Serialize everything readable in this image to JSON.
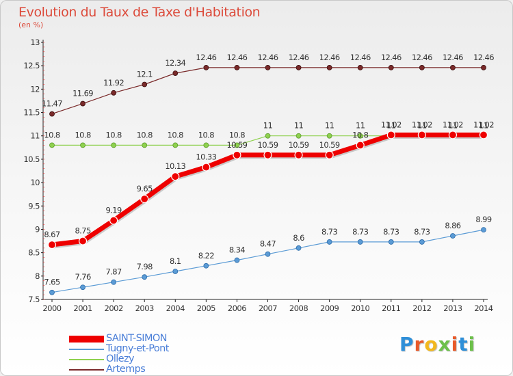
{
  "chart_data": {
    "type": "line",
    "title": "Evolution du Taux de Taxe d'Habitation",
    "ylabel": "(en %)",
    "xlabel": "",
    "x": [
      "2000",
      "2001",
      "2002",
      "2003",
      "2004",
      "2005",
      "2006",
      "2007",
      "2008",
      "2009",
      "2010",
      "2011",
      "2012",
      "2013",
      "2014"
    ],
    "ylim": [
      7.5,
      13
    ],
    "yticks": [
      "7.5",
      "8",
      "8.5",
      "9",
      "9.5",
      "10",
      "10.5",
      "11",
      "11.5",
      "12",
      "12.5",
      "13"
    ],
    "grid": false,
    "legend_position": "bottom-left",
    "series": [
      {
        "name": "SAINT-SIMON",
        "color": "#ee0000",
        "values": [
          8.67,
          8.75,
          9.19,
          9.65,
          10.13,
          10.33,
          10.59,
          10.59,
          10.59,
          10.59,
          10.8,
          11.02,
          11.02,
          11.02,
          11.02
        ],
        "labels": [
          "8.67",
          "8.75",
          "9.19",
          "9.65",
          "10.13",
          "10.33",
          "10.59",
          "10.59",
          "10.59",
          "10.59",
          "10.8",
          "11.02",
          "11.02",
          "11.02",
          "11.02"
        ]
      },
      {
        "name": "Tugny-et-Pont",
        "color": "#5b9bd5",
        "values": [
          7.65,
          7.76,
          7.87,
          7.98,
          8.1,
          8.22,
          8.34,
          8.47,
          8.6,
          8.73,
          8.73,
          8.73,
          8.73,
          8.86,
          8.99
        ],
        "labels": [
          "7.65",
          "7.76",
          "7.87",
          "7.98",
          "8.1",
          "8.22",
          "8.34",
          "8.47",
          "8.6",
          "8.73",
          "8.73",
          "8.73",
          "8.73",
          "8.86",
          "8.99"
        ]
      },
      {
        "name": "Ollezy",
        "color": "#8fd14f",
        "values": [
          10.8,
          10.8,
          10.8,
          10.8,
          10.8,
          10.8,
          10.8,
          11,
          11,
          11,
          11,
          11,
          11,
          11,
          11
        ],
        "labels": [
          "10.8",
          "10.8",
          "10.8",
          "10.8",
          "10.8",
          "10.8",
          "10.8",
          "11",
          "11",
          "11",
          "11",
          "11",
          "11",
          "11",
          "11"
        ]
      },
      {
        "name": "Artemps",
        "color": "#7a2a2a",
        "values": [
          11.47,
          11.69,
          11.92,
          12.1,
          12.34,
          12.46,
          12.46,
          12.46,
          12.46,
          12.46,
          12.46,
          12.46,
          12.46,
          12.46,
          12.46
        ],
        "labels": [
          "11.47",
          "11.69",
          "11.92",
          "12.1",
          "12.34",
          "12.46",
          "12.46",
          "12.46",
          "12.46",
          "12.46",
          "12.46",
          "12.46",
          "12.46",
          "12.46",
          "12.46"
        ]
      }
    ]
  },
  "brand": {
    "letters": [
      "P",
      "r",
      "o",
      "x",
      "i",
      "t",
      "i"
    ],
    "colors": [
      "#2f8fd8",
      "#e85a2a",
      "#f2b81e",
      "#6cc04a",
      "#e85a2a",
      "#2f8fd8",
      "#6cc04a"
    ]
  }
}
